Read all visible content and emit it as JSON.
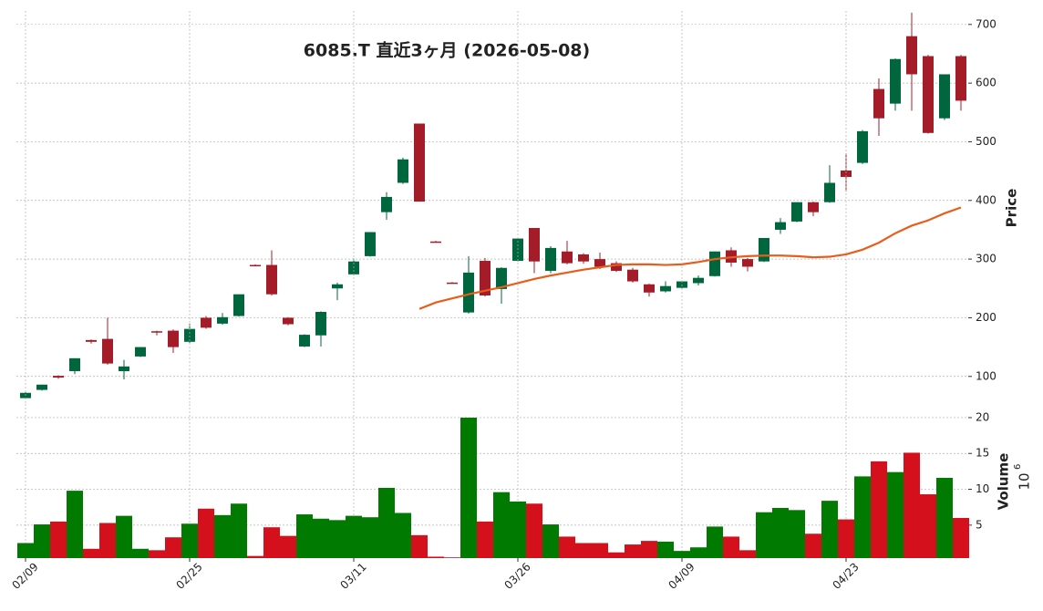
{
  "chart_data": [
    {
      "type": "candlestick",
      "title": "6085.T  直近3ヶ月  (2026-05-08)",
      "ylabel": "Price",
      "open": [
        63,
        77,
        101,
        109,
        162,
        164,
        109,
        134,
        177,
        178,
        159,
        200,
        190,
        203,
        290,
        290,
        200,
        151,
        170,
        250,
        274,
        305,
        380,
        430,
        531,
        330,
        260,
        209,
        297,
        249,
        297,
        353,
        280,
        313,
        308,
        300,
        293,
        282,
        257,
        245,
        251,
        259,
        271,
        315,
        300,
        296,
        350,
        364,
        397,
        397,
        451,
        464,
        590,
        565,
        680,
        646,
        540,
        646
      ],
      "high": [
        73,
        86,
        102,
        131,
        163,
        200,
        128,
        150,
        178,
        180,
        190,
        203,
        208,
        240,
        291,
        315,
        201,
        172,
        211,
        260,
        301,
        346,
        414,
        473,
        531,
        331,
        261,
        305,
        302,
        286,
        336,
        353,
        322,
        331,
        310,
        311,
        296,
        285,
        258,
        262,
        263,
        272,
        313,
        320,
        302,
        336,
        370,
        397,
        398,
        460,
        480,
        520,
        608,
        642,
        720,
        648,
        615,
        648
      ],
      "low": [
        62,
        76,
        96,
        104,
        156,
        120,
        95,
        133,
        170,
        140,
        157,
        181,
        188,
        202,
        288,
        238,
        187,
        150,
        151,
        230,
        272,
        304,
        367,
        428,
        398,
        329,
        259,
        207,
        236,
        224,
        296,
        276,
        276,
        291,
        292,
        283,
        278,
        260,
        236,
        243,
        250,
        255,
        270,
        287,
        279,
        295,
        343,
        363,
        373,
        396,
        415,
        462,
        510,
        553,
        553,
        514,
        537,
        553
      ],
      "close": [
        72,
        86,
        98,
        131,
        159,
        122,
        117,
        150,
        175,
        150,
        181,
        183,
        201,
        240,
        289,
        240,
        189,
        171,
        210,
        257,
        296,
        346,
        406,
        470,
        398,
        329,
        259,
        277,
        238,
        285,
        335,
        296,
        319,
        293,
        296,
        287,
        280,
        262,
        243,
        254,
        262,
        268,
        313,
        294,
        287,
        336,
        363,
        397,
        380,
        430,
        440,
        518,
        540,
        641,
        615,
        515,
        615,
        570
      ],
      "up_color": "#00663d",
      "down_color": "#a31c28",
      "overlay": {
        "color": "#e85d1c",
        "values": [
          null,
          null,
          null,
          null,
          null,
          null,
          null,
          null,
          null,
          null,
          null,
          null,
          null,
          null,
          null,
          null,
          null,
          null,
          null,
          null,
          null,
          null,
          null,
          null,
          215,
          226,
          233,
          240,
          246,
          252,
          259,
          266,
          272,
          277,
          282,
          286,
          290,
          291,
          291,
          290,
          291,
          295,
          300,
          303,
          305,
          306,
          306,
          305,
          303,
          304,
          308,
          316,
          328,
          344,
          357,
          366,
          378,
          388
        ]
      },
      "ylim": [
        53,
        723
      ],
      "yticks": [
        100,
        200,
        300,
        400,
        500,
        600,
        700
      ],
      "grid": true
    },
    {
      "type": "bar",
      "ylabel": "Volume",
      "offset": {
        "base": "10",
        "exponent": "6"
      },
      "categories": [
        "02/09",
        null,
        null,
        null,
        null,
        null,
        null,
        null,
        null,
        null,
        "02/25",
        null,
        null,
        null,
        null,
        null,
        null,
        null,
        null,
        null,
        "03/11",
        null,
        null,
        null,
        null,
        null,
        null,
        null,
        null,
        null,
        "03/26",
        null,
        null,
        null,
        null,
        null,
        null,
        null,
        null,
        null,
        "04/09",
        null,
        null,
        null,
        null,
        null,
        null,
        null,
        null,
        null,
        "04/23",
        null,
        null,
        null,
        null,
        null,
        null,
        null
      ],
      "values": [
        2.5,
        5.1,
        5.5,
        9.8,
        1.7,
        5.3,
        6.3,
        1.7,
        1.5,
        3.3,
        5.2,
        7.3,
        6.4,
        8.0,
        0.7,
        4.7,
        3.5,
        6.5,
        5.9,
        5.7,
        6.3,
        6.1,
        10.2,
        6.7,
        3.6,
        0.6,
        0.5,
        20,
        5.5,
        9.6,
        8.3,
        8.0,
        5.1,
        3.4,
        2.5,
        2.5,
        1.2,
        2.3,
        2.8,
        2.7,
        1.4,
        1.9,
        4.8,
        3.4,
        1.5,
        6.8,
        7.4,
        7.1,
        3.8,
        8.4,
        5.8,
        11.8,
        13.9,
        12.4,
        15.1,
        9.3,
        11.6,
        6.0
      ],
      "up_color": "#007a00",
      "down_color": "#d4101c",
      "ylim": [
        0.4,
        21.9
      ],
      "yticks": [
        5,
        10,
        15,
        20
      ],
      "grid": true
    }
  ]
}
